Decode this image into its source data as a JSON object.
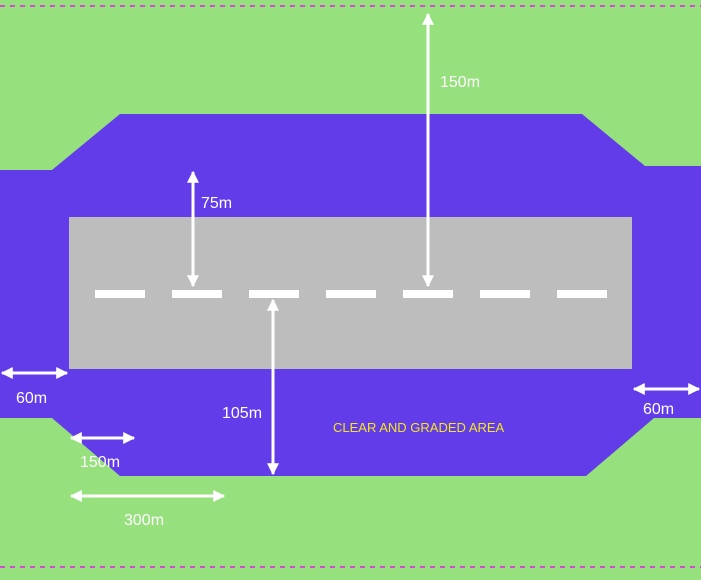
{
  "colors": {
    "grass": "#97e07e",
    "graded_area": "#613ce8",
    "runway": "#bdbdbd",
    "markings": "#ffffff",
    "boundary_line": "#d64bd6",
    "note_text": "#f6e61c"
  },
  "labels": {
    "top_distance": "150m",
    "runway_offset": "75m",
    "bottom_distance": "105m",
    "left_margin": "60m",
    "right_margin": "60m",
    "chamfer_width": "150m",
    "chamfer_length": "300m"
  },
  "annotation": "CLEAR AND GRADED AREA"
}
